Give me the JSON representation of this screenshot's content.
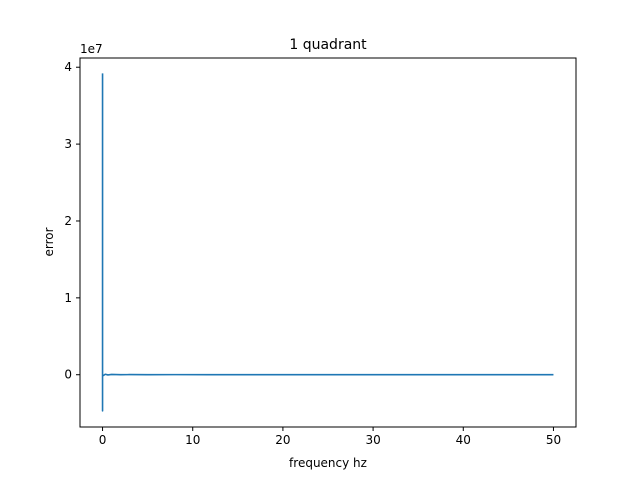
{
  "chart_data": {
    "type": "line",
    "title": "1 quadrant",
    "xlabel": "frequency hz",
    "ylabel": "error",
    "y_offset_label": "1e7",
    "xlim": [
      -2.5,
      52.5
    ],
    "ylim": [
      -0.68,
      4.12
    ],
    "y_scale_factor": 10000000,
    "xticks": [
      0,
      10,
      20,
      30,
      40,
      50
    ],
    "yticks": [
      0,
      1,
      2,
      3,
      4
    ],
    "grid": false,
    "series": [
      {
        "color": "#1f77b4",
        "x": [
          0,
          0,
          0,
          0.1,
          0.3,
          0.6,
          1,
          2,
          3,
          5,
          8,
          12,
          16,
          20,
          25,
          30,
          35,
          40,
          45,
          48,
          50
        ],
        "y": [
          39200000,
          -4700000,
          0,
          -100000,
          60000,
          -30000,
          40000,
          10000,
          15000,
          5000,
          12000,
          6000,
          9000,
          4000,
          8000,
          3000,
          7000,
          2000,
          5000,
          3000,
          1000
        ]
      }
    ]
  }
}
